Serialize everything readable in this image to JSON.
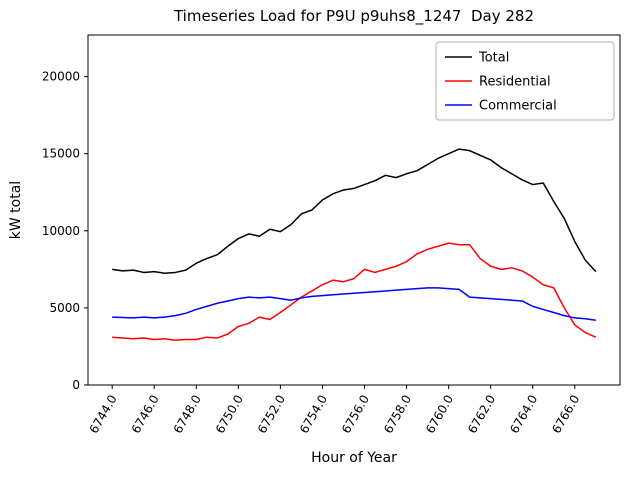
{
  "chart_data": {
    "type": "line",
    "title": "Timeseries Load for P9U p9uhs8_1247  Day 282",
    "xlabel": "Hour of Year",
    "ylabel": "kW total",
    "xlim": [
      6742.85,
      6768.15
    ],
    "ylim": [
      0,
      22700
    ],
    "grid": false,
    "legend_position": "upper right",
    "xticks": {
      "values": [
        6744,
        6746,
        6748,
        6750,
        6752,
        6754,
        6756,
        6758,
        6760,
        6762,
        6764,
        6766
      ],
      "labels": [
        "6744.0",
        "6746.0",
        "6748.0",
        "6750.0",
        "6752.0",
        "6754.0",
        "6756.0",
        "6758.0",
        "6760.0",
        "6762.0",
        "6764.0",
        "6766.0"
      ]
    },
    "yticks": {
      "values": [
        0,
        5000,
        10000,
        15000,
        20000
      ],
      "labels": [
        "0",
        "5000",
        "10000",
        "15000",
        "20000"
      ]
    },
    "x": [
      6744.0,
      6744.5,
      6745.0,
      6745.5,
      6746.0,
      6746.5,
      6747.0,
      6747.5,
      6748.0,
      6748.5,
      6749.0,
      6749.5,
      6750.0,
      6750.5,
      6751.0,
      6751.5,
      6752.0,
      6752.5,
      6753.0,
      6753.5,
      6754.0,
      6754.5,
      6755.0,
      6755.5,
      6756.0,
      6756.5,
      6757.0,
      6757.5,
      6758.0,
      6758.5,
      6759.0,
      6759.5,
      6760.0,
      6760.5,
      6761.0,
      6761.5,
      6762.0,
      6762.5,
      6763.0,
      6763.5,
      6764.0,
      6764.5,
      6765.0,
      6765.5,
      6766.0,
      6766.5,
      6767.0
    ],
    "series": [
      {
        "name": "Total",
        "color": "#000000",
        "values": [
          7500,
          7400,
          7450,
          7300,
          7350,
          7250,
          7300,
          7450,
          7900,
          8200,
          8450,
          9000,
          9500,
          9800,
          9650,
          10100,
          9950,
          10400,
          11100,
          11350,
          12000,
          12400,
          12650,
          12750,
          13000,
          13250,
          13600,
          13450,
          13700,
          13900,
          14300,
          14700,
          15000,
          15300,
          15200,
          14900,
          14600,
          14100,
          13700,
          13300,
          13000,
          13100,
          11900,
          10800,
          9300,
          8100,
          7350
        ]
      },
      {
        "name": "Residential",
        "color": "#ff0000",
        "values": [
          3100,
          3050,
          3000,
          3050,
          2950,
          3000,
          2900,
          2950,
          2950,
          3100,
          3050,
          3300,
          3800,
          4000,
          4400,
          4250,
          4700,
          5200,
          5700,
          6100,
          6500,
          6800,
          6700,
          6900,
          7500,
          7300,
          7500,
          7700,
          8000,
          8500,
          8800,
          9000,
          9200,
          9100,
          9100,
          8200,
          7700,
          7500,
          7600,
          7400,
          7000,
          6500,
          6300,
          5000,
          3900,
          3400,
          3100
        ]
      },
      {
        "name": "Commercial",
        "color": "#0000ff",
        "values": [
          4400,
          4380,
          4350,
          4400,
          4350,
          4400,
          4500,
          4650,
          4900,
          5100,
          5300,
          5450,
          5600,
          5700,
          5650,
          5700,
          5600,
          5500,
          5650,
          5750,
          5800,
          5850,
          5900,
          5950,
          6000,
          6050,
          6100,
          6150,
          6200,
          6250,
          6300,
          6300,
          6250,
          6200,
          5700,
          5650,
          5600,
          5550,
          5500,
          5450,
          5100,
          4900,
          4700,
          4500,
          4350,
          4300,
          4200
        ]
      }
    ]
  }
}
